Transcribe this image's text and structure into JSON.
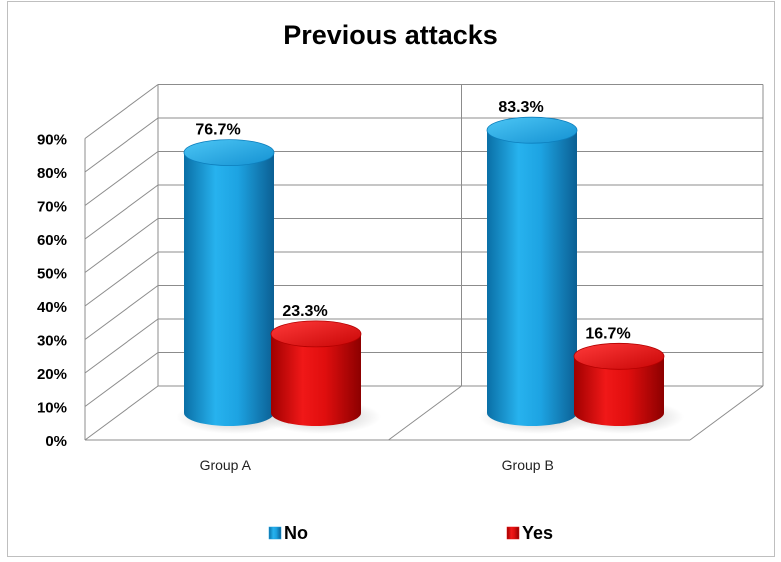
{
  "chart_data": {
    "type": "bar",
    "style": "3d-cylinder",
    "title": "Previous attacks",
    "xlabel": "",
    "ylabel": "",
    "categories": [
      "Group A",
      "Group B"
    ],
    "series": [
      {
        "name": "No",
        "values": [
          76.7,
          83.3
        ],
        "labels": [
          "76.7%",
          "83.3%"
        ],
        "color": "#1aa0e0"
      },
      {
        "name": "Yes",
        "values": [
          23.3,
          16.7
        ],
        "labels": [
          "23.3%",
          "16.7%"
        ],
        "color": "#e01010"
      }
    ],
    "ylim": [
      0,
      90
    ],
    "yticks": [
      "0%",
      "10%",
      "20%",
      "30%",
      "40%",
      "50%",
      "60%",
      "70%",
      "80%",
      "90%"
    ],
    "grid": true,
    "legend_position": "bottom"
  }
}
